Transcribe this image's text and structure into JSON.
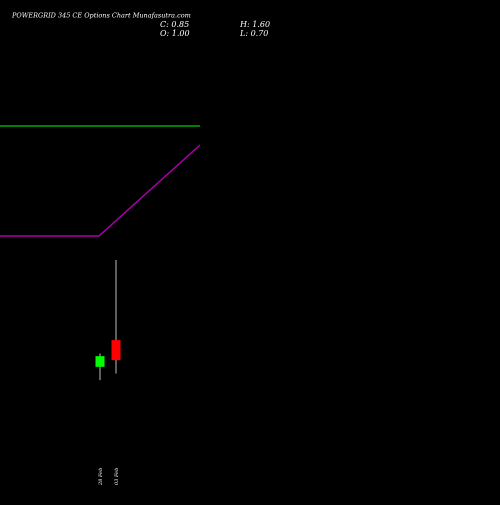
{
  "chart_data": {
    "type": "candlestick",
    "title": "POWERGRID 345 CE Options  Chart Munafasutra.com",
    "ohlc_summary": {
      "C": "0.85",
      "H": "1.60",
      "O": "1.00",
      "L": "0.70"
    },
    "x": [
      "28 Feb",
      "03 Feb"
    ],
    "candles": [
      {
        "date": "28 Feb",
        "open": 0.8,
        "high": 0.9,
        "low": 0.7,
        "close": 0.88,
        "color": "#00ff00"
      },
      {
        "date": "03 Feb",
        "open": 1.0,
        "high": 1.6,
        "low": 0.75,
        "close": 0.85,
        "color": "#ff0000"
      }
    ],
    "lines": [
      {
        "color": "#00aa00"
      },
      {
        "color": "#aa00aa"
      }
    ],
    "colors": {
      "background": "#000000",
      "up": "#00ff00",
      "down": "#ff0000",
      "text": "#ffffff"
    }
  }
}
